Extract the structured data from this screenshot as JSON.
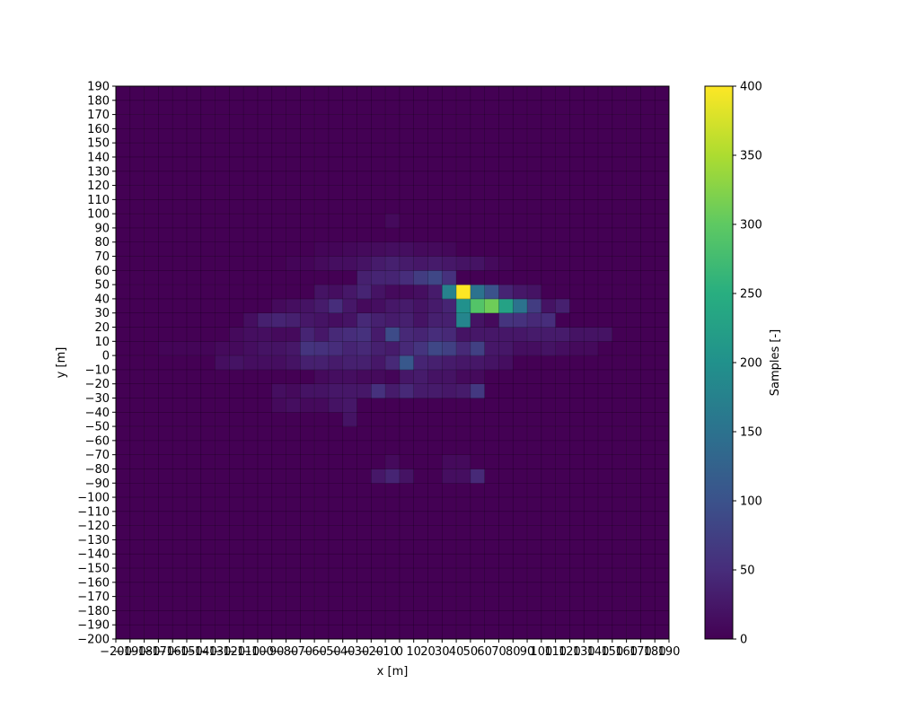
{
  "chart_data": {
    "type": "heatmap",
    "title": "",
    "xlabel": "x [m]",
    "ylabel": "y [m]",
    "colorbar_label": "Samples [-]",
    "colormap": "viridis",
    "x_bin_start": -200,
    "x_bin_width": 10,
    "x_bin_count": 39,
    "y_bin_start": -200,
    "y_bin_width": 10,
    "y_bin_count": 39,
    "xlim": [
      -200,
      190
    ],
    "ylim": [
      -200,
      190
    ],
    "clim": [
      0,
      400
    ],
    "x_ticks": [
      "−200",
      "−190",
      "−180",
      "−170",
      "−160",
      "−150",
      "−140",
      "−130",
      "−120",
      "−110",
      "−100",
      "−90",
      "−80",
      "−70",
      "−60",
      "−50",
      "−40",
      "−30",
      "−20",
      "−10",
      "0",
      "10",
      "20",
      "30",
      "40",
      "50",
      "60",
      "70",
      "80",
      "90",
      "100",
      "110",
      "120",
      "130",
      "140",
      "150",
      "160",
      "170",
      "180",
      "190"
    ],
    "y_ticks": [
      "−200",
      "−190",
      "−180",
      "−170",
      "−160",
      "−150",
      "−140",
      "−130",
      "−120",
      "−110",
      "−100",
      "−90",
      "−80",
      "−70",
      "−60",
      "−50",
      "−40",
      "−30",
      "−20",
      "−10",
      "0",
      "10",
      "20",
      "30",
      "40",
      "50",
      "60",
      "70",
      "80",
      "90",
      "100",
      "110",
      "120",
      "130",
      "140",
      "150",
      "160",
      "170",
      "180",
      "190"
    ],
    "colorbar_ticks": [
      "0",
      "50",
      "100",
      "150",
      "200",
      "250",
      "300",
      "350",
      "400"
    ],
    "cells": [
      {
        "x": -10,
        "y": 90,
        "v": 10
      },
      {
        "x": -60,
        "y": 70,
        "v": 5
      },
      {
        "x": -50,
        "y": 70,
        "v": 5
      },
      {
        "x": -40,
        "y": 70,
        "v": 8
      },
      {
        "x": -30,
        "y": 70,
        "v": 10
      },
      {
        "x": -20,
        "y": 70,
        "v": 12
      },
      {
        "x": -10,
        "y": 70,
        "v": 15
      },
      {
        "x": 0,
        "y": 70,
        "v": 15
      },
      {
        "x": 10,
        "y": 70,
        "v": 10
      },
      {
        "x": 20,
        "y": 70,
        "v": 10
      },
      {
        "x": 30,
        "y": 70,
        "v": 8
      },
      {
        "x": -80,
        "y": 60,
        "v": 5
      },
      {
        "x": -70,
        "y": 60,
        "v": 5
      },
      {
        "x": -60,
        "y": 60,
        "v": 10
      },
      {
        "x": -50,
        "y": 60,
        "v": 15
      },
      {
        "x": -40,
        "y": 60,
        "v": 15
      },
      {
        "x": -30,
        "y": 60,
        "v": 20
      },
      {
        "x": -20,
        "y": 60,
        "v": 30
      },
      {
        "x": -10,
        "y": 60,
        "v": 35
      },
      {
        "x": 0,
        "y": 60,
        "v": 30
      },
      {
        "x": 10,
        "y": 60,
        "v": 25
      },
      {
        "x": 20,
        "y": 60,
        "v": 30
      },
      {
        "x": 30,
        "y": 60,
        "v": 25
      },
      {
        "x": 40,
        "y": 60,
        "v": 20
      },
      {
        "x": 50,
        "y": 60,
        "v": 20
      },
      {
        "x": 60,
        "y": 60,
        "v": 10
      },
      {
        "x": 70,
        "y": 60,
        "v": 5
      },
      {
        "x": -30,
        "y": 50,
        "v": 35
      },
      {
        "x": -20,
        "y": 50,
        "v": 40
      },
      {
        "x": -10,
        "y": 50,
        "v": 40
      },
      {
        "x": 0,
        "y": 50,
        "v": 50
      },
      {
        "x": 10,
        "y": 50,
        "v": 70
      },
      {
        "x": 20,
        "y": 50,
        "v": 85
      },
      {
        "x": 30,
        "y": 50,
        "v": 55
      },
      {
        "x": -60,
        "y": 40,
        "v": 20
      },
      {
        "x": -50,
        "y": 40,
        "v": 15
      },
      {
        "x": -40,
        "y": 40,
        "v": 25
      },
      {
        "x": -30,
        "y": 40,
        "v": 40
      },
      {
        "x": -20,
        "y": 40,
        "v": 20
      },
      {
        "x": -10,
        "y": 40,
        "v": 10
      },
      {
        "x": 0,
        "y": 40,
        "v": 10
      },
      {
        "x": 10,
        "y": 40,
        "v": 15
      },
      {
        "x": 20,
        "y": 40,
        "v": 30
      },
      {
        "x": 30,
        "y": 40,
        "v": 175
      },
      {
        "x": 40,
        "y": 40,
        "v": 400
      },
      {
        "x": 50,
        "y": 40,
        "v": 150
      },
      {
        "x": 60,
        "y": 40,
        "v": 100
      },
      {
        "x": 70,
        "y": 40,
        "v": 40
      },
      {
        "x": 80,
        "y": 40,
        "v": 25
      },
      {
        "x": 90,
        "y": 40,
        "v": 20
      },
      {
        "x": -90,
        "y": 30,
        "v": 10
      },
      {
        "x": -80,
        "y": 30,
        "v": 15
      },
      {
        "x": -70,
        "y": 30,
        "v": 20
      },
      {
        "x": -60,
        "y": 30,
        "v": 30
      },
      {
        "x": -50,
        "y": 30,
        "v": 50
      },
      {
        "x": -40,
        "y": 30,
        "v": 25
      },
      {
        "x": -30,
        "y": 30,
        "v": 10
      },
      {
        "x": -20,
        "y": 30,
        "v": 15
      },
      {
        "x": -10,
        "y": 30,
        "v": 25
      },
      {
        "x": 0,
        "y": 30,
        "v": 30
      },
      {
        "x": 10,
        "y": 30,
        "v": 20
      },
      {
        "x": 20,
        "y": 30,
        "v": 30
      },
      {
        "x": 30,
        "y": 30,
        "v": 40
      },
      {
        "x": 40,
        "y": 30,
        "v": 200
      },
      {
        "x": 50,
        "y": 30,
        "v": 290
      },
      {
        "x": 60,
        "y": 30,
        "v": 310
      },
      {
        "x": 70,
        "y": 30,
        "v": 230
      },
      {
        "x": 80,
        "y": 30,
        "v": 150
      },
      {
        "x": 90,
        "y": 30,
        "v": 70
      },
      {
        "x": 100,
        "y": 30,
        "v": 20
      },
      {
        "x": 110,
        "y": 30,
        "v": 35
      },
      {
        "x": -110,
        "y": 20,
        "v": 15
      },
      {
        "x": -100,
        "y": 20,
        "v": 35
      },
      {
        "x": -90,
        "y": 20,
        "v": 40
      },
      {
        "x": -80,
        "y": 20,
        "v": 35
      },
      {
        "x": -70,
        "y": 20,
        "v": 25
      },
      {
        "x": -60,
        "y": 20,
        "v": 20
      },
      {
        "x": -50,
        "y": 20,
        "v": 15
      },
      {
        "x": -40,
        "y": 20,
        "v": 20
      },
      {
        "x": -30,
        "y": 20,
        "v": 45
      },
      {
        "x": -20,
        "y": 20,
        "v": 35
      },
      {
        "x": -10,
        "y": 20,
        "v": 30
      },
      {
        "x": 0,
        "y": 20,
        "v": 35
      },
      {
        "x": 10,
        "y": 20,
        "v": 20
      },
      {
        "x": 20,
        "y": 20,
        "v": 35
      },
      {
        "x": 30,
        "y": 20,
        "v": 35
      },
      {
        "x": 40,
        "y": 20,
        "v": 180
      },
      {
        "x": 50,
        "y": 20,
        "v": 20
      },
      {
        "x": 60,
        "y": 20,
        "v": 10
      },
      {
        "x": 70,
        "y": 20,
        "v": 60
      },
      {
        "x": 80,
        "y": 20,
        "v": 55
      },
      {
        "x": 90,
        "y": 20,
        "v": 45
      },
      {
        "x": 100,
        "y": 20,
        "v": 50
      },
      {
        "x": -120,
        "y": 10,
        "v": 10
      },
      {
        "x": -110,
        "y": 10,
        "v": 15
      },
      {
        "x": -100,
        "y": 10,
        "v": 15
      },
      {
        "x": -90,
        "y": 10,
        "v": 10
      },
      {
        "x": -80,
        "y": 10,
        "v": 10
      },
      {
        "x": -70,
        "y": 10,
        "v": 40
      },
      {
        "x": -60,
        "y": 10,
        "v": 25
      },
      {
        "x": -50,
        "y": 10,
        "v": 45
      },
      {
        "x": -40,
        "y": 10,
        "v": 50
      },
      {
        "x": -30,
        "y": 10,
        "v": 55
      },
      {
        "x": -20,
        "y": 10,
        "v": 30
      },
      {
        "x": -10,
        "y": 10,
        "v": 90
      },
      {
        "x": 0,
        "y": 10,
        "v": 45
      },
      {
        "x": 10,
        "y": 10,
        "v": 40
      },
      {
        "x": 20,
        "y": 10,
        "v": 50
      },
      {
        "x": 30,
        "y": 10,
        "v": 45
      },
      {
        "x": 40,
        "y": 10,
        "v": 20
      },
      {
        "x": 50,
        "y": 10,
        "v": 25
      },
      {
        "x": 60,
        "y": 10,
        "v": 25
      },
      {
        "x": 70,
        "y": 10,
        "v": 25
      },
      {
        "x": 80,
        "y": 10,
        "v": 25
      },
      {
        "x": 90,
        "y": 10,
        "v": 30
      },
      {
        "x": 100,
        "y": 10,
        "v": 30
      },
      {
        "x": 110,
        "y": 10,
        "v": 30
      },
      {
        "x": 120,
        "y": 10,
        "v": 20
      },
      {
        "x": 130,
        "y": 10,
        "v": 20
      },
      {
        "x": 140,
        "y": 10,
        "v": 20
      },
      {
        "x": -170,
        "y": 0,
        "v": 5
      },
      {
        "x": -160,
        "y": 0,
        "v": 5
      },
      {
        "x": -150,
        "y": 0,
        "v": 5
      },
      {
        "x": -140,
        "y": 0,
        "v": 5
      },
      {
        "x": -130,
        "y": 0,
        "v": 10
      },
      {
        "x": -120,
        "y": 0,
        "v": 10
      },
      {
        "x": -110,
        "y": 0,
        "v": 15
      },
      {
        "x": -100,
        "y": 0,
        "v": 20
      },
      {
        "x": -90,
        "y": 0,
        "v": 20
      },
      {
        "x": -80,
        "y": 0,
        "v": 25
      },
      {
        "x": -70,
        "y": 0,
        "v": 60
      },
      {
        "x": -60,
        "y": 0,
        "v": 55
      },
      {
        "x": -50,
        "y": 0,
        "v": 50
      },
      {
        "x": -40,
        "y": 0,
        "v": 40
      },
      {
        "x": -30,
        "y": 0,
        "v": 45
      },
      {
        "x": -20,
        "y": 0,
        "v": 35
      },
      {
        "x": -10,
        "y": 0,
        "v": 30
      },
      {
        "x": 0,
        "y": 0,
        "v": 45
      },
      {
        "x": 10,
        "y": 0,
        "v": 60
      },
      {
        "x": 20,
        "y": 0,
        "v": 85
      },
      {
        "x": 30,
        "y": 0,
        "v": 75
      },
      {
        "x": 40,
        "y": 0,
        "v": 45
      },
      {
        "x": 50,
        "y": 0,
        "v": 75
      },
      {
        "x": 60,
        "y": 0,
        "v": 25
      },
      {
        "x": 70,
        "y": 0,
        "v": 25
      },
      {
        "x": 80,
        "y": 0,
        "v": 15
      },
      {
        "x": 90,
        "y": 0,
        "v": 15
      },
      {
        "x": 100,
        "y": 0,
        "v": 20
      },
      {
        "x": 110,
        "y": 0,
        "v": 15
      },
      {
        "x": 120,
        "y": 0,
        "v": 10
      },
      {
        "x": 130,
        "y": 0,
        "v": 10
      },
      {
        "x": -130,
        "y": -10,
        "v": 15
      },
      {
        "x": -120,
        "y": -10,
        "v": 20
      },
      {
        "x": -110,
        "y": -10,
        "v": 15
      },
      {
        "x": -100,
        "y": -10,
        "v": 15
      },
      {
        "x": -90,
        "y": -10,
        "v": 15
      },
      {
        "x": -80,
        "y": -10,
        "v": 20
      },
      {
        "x": -70,
        "y": -10,
        "v": 35
      },
      {
        "x": -60,
        "y": -10,
        "v": 35
      },
      {
        "x": -50,
        "y": -10,
        "v": 30
      },
      {
        "x": -40,
        "y": -10,
        "v": 35
      },
      {
        "x": -30,
        "y": -10,
        "v": 35
      },
      {
        "x": -20,
        "y": -10,
        "v": 25
      },
      {
        "x": -10,
        "y": -10,
        "v": 45
      },
      {
        "x": 0,
        "y": -10,
        "v": 110
      },
      {
        "x": 10,
        "y": -10,
        "v": 40
      },
      {
        "x": 20,
        "y": -10,
        "v": 35
      },
      {
        "x": 30,
        "y": -10,
        "v": 30
      },
      {
        "x": 40,
        "y": -10,
        "v": 25
      },
      {
        "x": 50,
        "y": -10,
        "v": 25
      },
      {
        "x": 60,
        "y": -10,
        "v": 20
      },
      {
        "x": 70,
        "y": -10,
        "v": 15
      },
      {
        "x": -60,
        "y": -20,
        "v": 10
      },
      {
        "x": -50,
        "y": -20,
        "v": 15
      },
      {
        "x": -40,
        "y": -20,
        "v": 15
      },
      {
        "x": -30,
        "y": -20,
        "v": 10
      },
      {
        "x": -20,
        "y": -20,
        "v": 10
      },
      {
        "x": -10,
        "y": -20,
        "v": 5
      },
      {
        "x": 0,
        "y": -20,
        "v": 25
      },
      {
        "x": 10,
        "y": -20,
        "v": 30
      },
      {
        "x": 20,
        "y": -20,
        "v": 20
      },
      {
        "x": 30,
        "y": -20,
        "v": 20
      },
      {
        "x": 40,
        "y": -20,
        "v": 10
      },
      {
        "x": 50,
        "y": -20,
        "v": 10
      },
      {
        "x": -90,
        "y": -30,
        "v": 15
      },
      {
        "x": -80,
        "y": -30,
        "v": 10
      },
      {
        "x": -70,
        "y": -30,
        "v": 20
      },
      {
        "x": -60,
        "y": -30,
        "v": 20
      },
      {
        "x": -50,
        "y": -30,
        "v": 25
      },
      {
        "x": -40,
        "y": -30,
        "v": 25
      },
      {
        "x": -30,
        "y": -30,
        "v": 25
      },
      {
        "x": -20,
        "y": -30,
        "v": 55
      },
      {
        "x": -10,
        "y": -30,
        "v": 30
      },
      {
        "x": 0,
        "y": -30,
        "v": 45
      },
      {
        "x": 10,
        "y": -30,
        "v": 30
      },
      {
        "x": 20,
        "y": -30,
        "v": 30
      },
      {
        "x": 30,
        "y": -30,
        "v": 25
      },
      {
        "x": 40,
        "y": -30,
        "v": 30
      },
      {
        "x": 50,
        "y": -30,
        "v": 65
      },
      {
        "x": -90,
        "y": -40,
        "v": 10
      },
      {
        "x": -80,
        "y": -40,
        "v": 15
      },
      {
        "x": -70,
        "y": -40,
        "v": 10
      },
      {
        "x": -60,
        "y": -40,
        "v": 10
      },
      {
        "x": -50,
        "y": -40,
        "v": 20
      },
      {
        "x": -40,
        "y": -40,
        "v": 25
      },
      {
        "x": -40,
        "y": -50,
        "v": 20
      },
      {
        "x": -10,
        "y": -80,
        "v": 10
      },
      {
        "x": 30,
        "y": -80,
        "v": 10
      },
      {
        "x": 40,
        "y": -80,
        "v": 10
      },
      {
        "x": -20,
        "y": -90,
        "v": 25
      },
      {
        "x": -10,
        "y": -90,
        "v": 40
      },
      {
        "x": 0,
        "y": -90,
        "v": 20
      },
      {
        "x": 30,
        "y": -90,
        "v": 15
      },
      {
        "x": 40,
        "y": -90,
        "v": 15
      },
      {
        "x": 50,
        "y": -90,
        "v": 45
      }
    ]
  }
}
